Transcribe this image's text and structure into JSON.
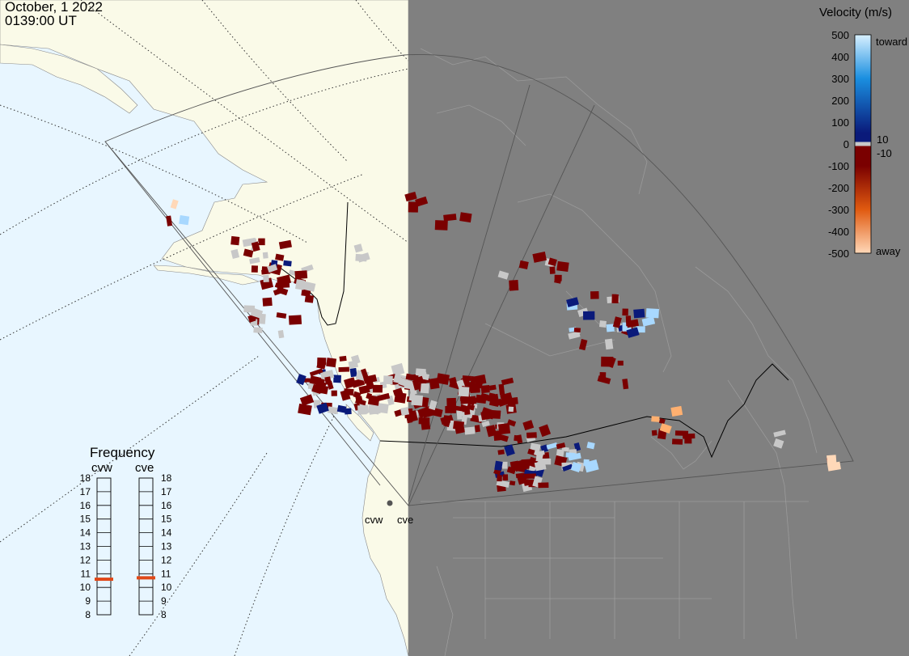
{
  "header": {
    "date": "October, 1 2022",
    "time": "0139:00 UT"
  },
  "velocity_scale": {
    "title": "Velocity (m/s)",
    "ticks": [
      "500",
      "400",
      "300",
      "200",
      "100",
      "0",
      "-100",
      "-200",
      "-300",
      "-400",
      "-500"
    ],
    "small_labels": [
      "10",
      "-10"
    ],
    "toward_label": "toward",
    "away_label": "away",
    "colors": {
      "toward_high": "#d8f0ff",
      "toward_mid": "#1a8fe0",
      "toward_low": "#0a1a7a",
      "zero_band": "#c8c8c8",
      "away_low": "#7a0000",
      "away_mid": "#e05a10",
      "away_high": "#ffd8b8"
    }
  },
  "frequency_panel": {
    "title": "Frequency",
    "radars": [
      "cvw",
      "cve"
    ],
    "levels": [
      "18",
      "17",
      "16",
      "15",
      "14",
      "13",
      "12",
      "11",
      "10",
      "9",
      "8"
    ],
    "values_mhz": [
      10.6,
      10.7
    ],
    "marker_color": "#e04818"
  },
  "radar_sites": {
    "labels": [
      "cvw",
      "cve"
    ]
  },
  "colors": {
    "ocean_day": "#e8f6ff",
    "land_day": "#fafae8",
    "night": "#808080",
    "night_coast": "#9a9a9a",
    "fov_line": "#555555",
    "ground_scatter": "#c8c8c8"
  }
}
